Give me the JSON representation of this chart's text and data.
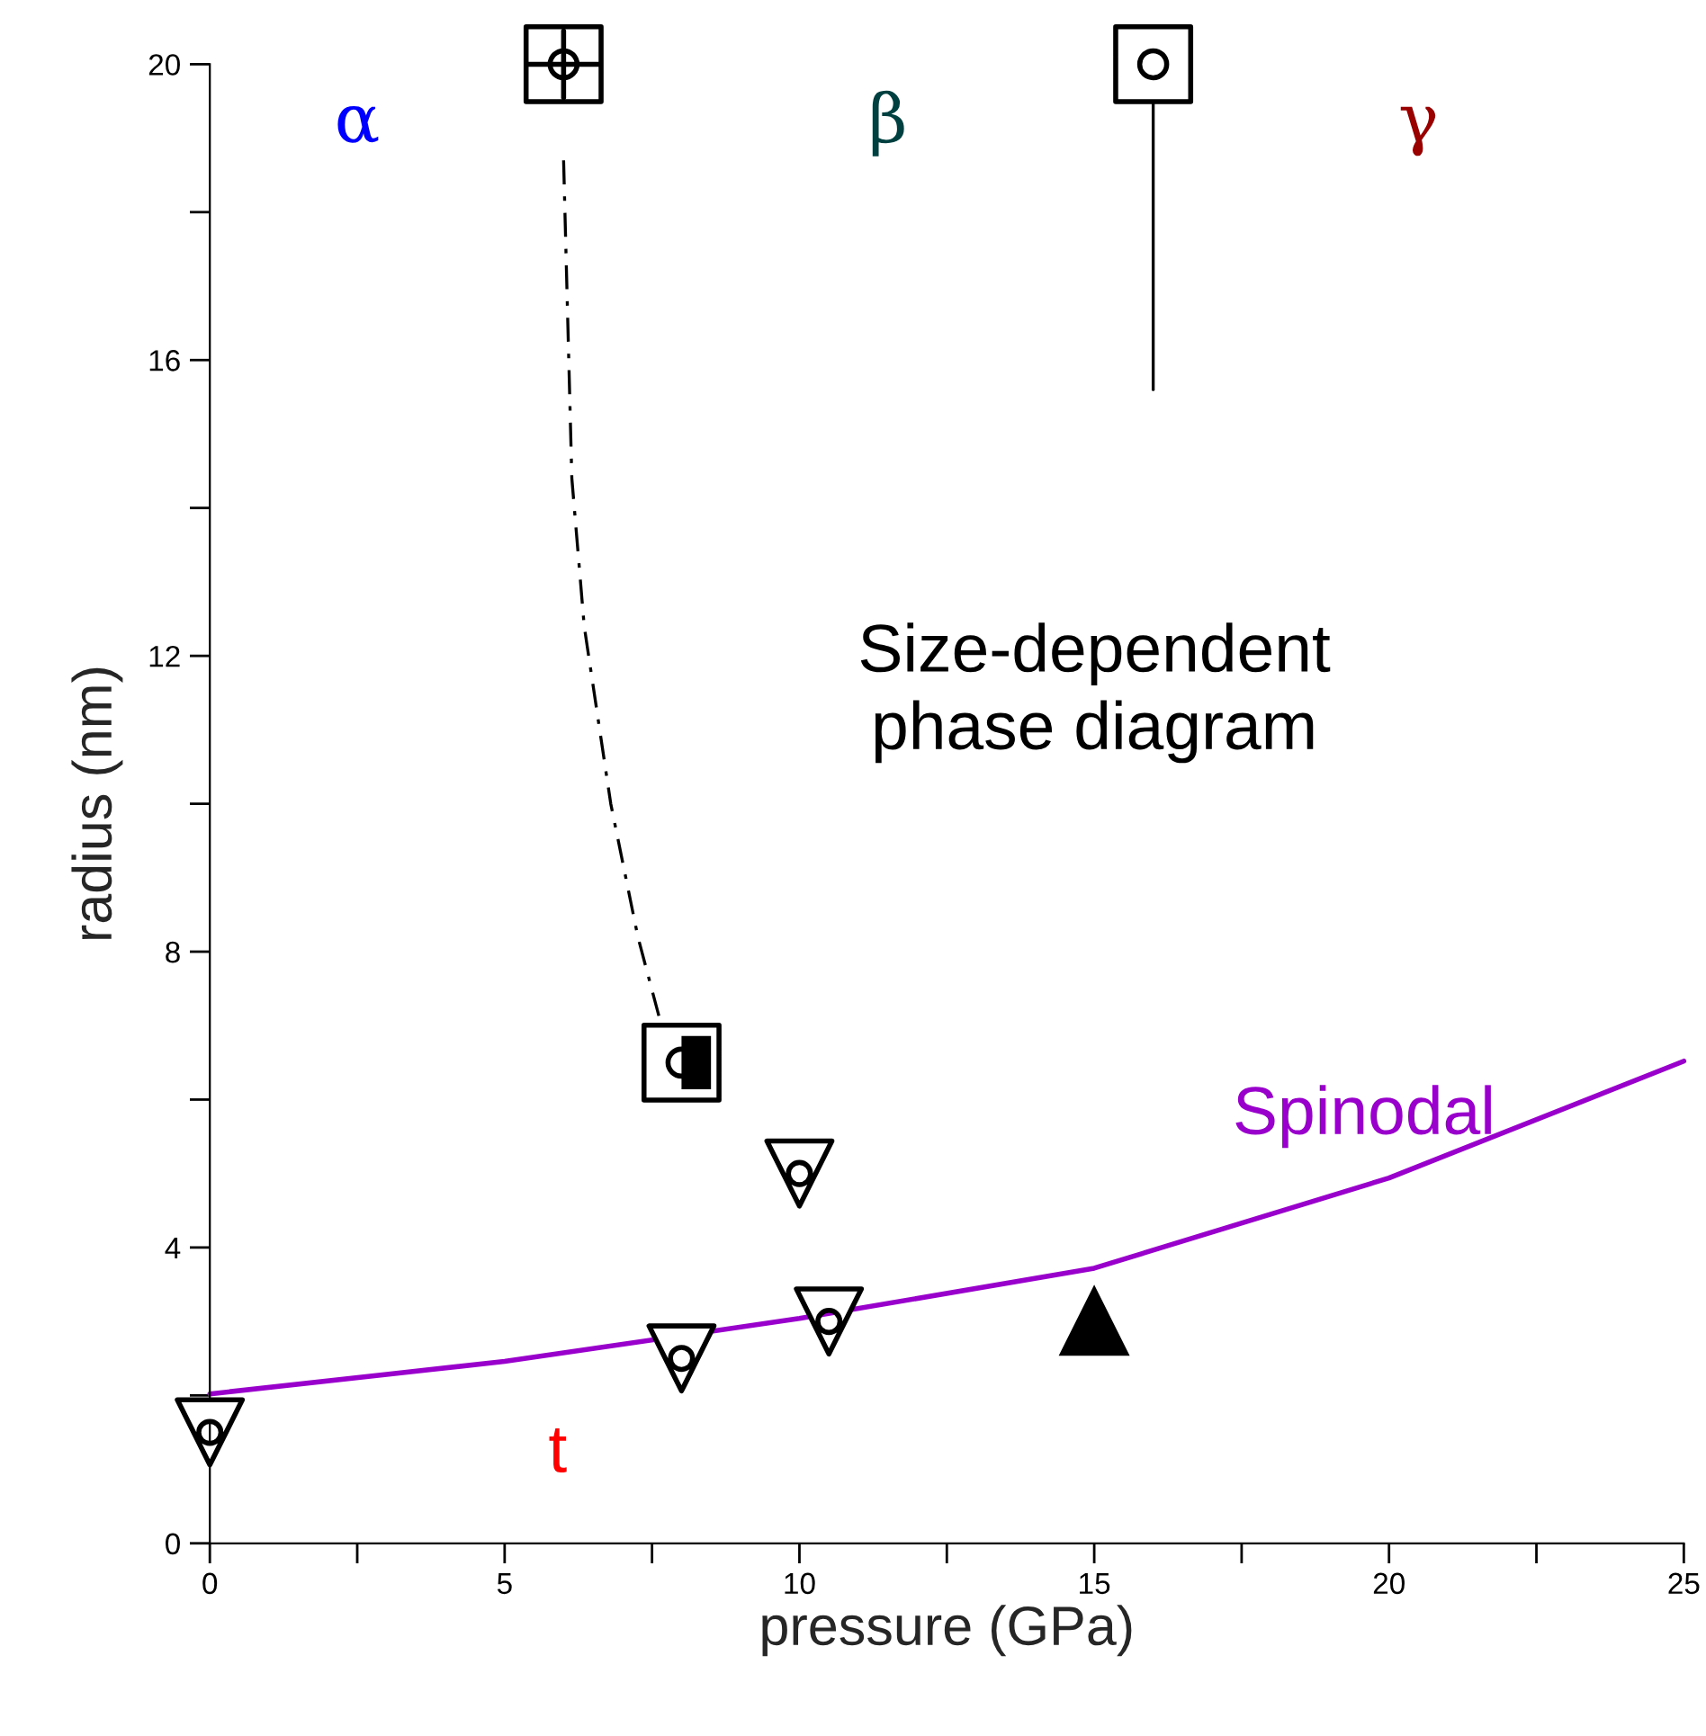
{
  "chart_data": {
    "type": "scatter",
    "xlabel": "pressure (GPa)",
    "ylabel": "radius (nm)",
    "xlim": [
      0,
      25
    ],
    "ylim": [
      0,
      20
    ],
    "xticks": [
      0,
      {
        "value": 2.5,
        "label": null
      },
      5,
      {
        "value": 7.5,
        "label": null
      },
      10,
      {
        "value": 12.5,
        "label": null
      },
      15,
      {
        "value": 17.5,
        "label": null
      },
      20,
      {
        "value": 22.5,
        "label": null
      },
      25
    ],
    "yticks": [
      0,
      {
        "value": 2,
        "label": null
      },
      4,
      {
        "value": 6,
        "label": null
      },
      8,
      {
        "value": 10,
        "label": null
      },
      12,
      {
        "value": 14,
        "label": null
      },
      16,
      {
        "value": 18,
        "label": null
      },
      20
    ],
    "grid": false,
    "legend": false,
    "series": [
      {
        "type": "line",
        "color": "#000000",
        "line_style": "dashed",
        "x": [
          6.0,
          6.14,
          6.35,
          6.8,
          7.26,
          7.66
        ],
        "values": [
          18.7,
          14.4,
          12.4,
          10.0,
          8.2,
          7.0
        ]
      },
      {
        "type": "line",
        "color": "#000000",
        "line_style": "solid",
        "x": [
          16,
          16
        ],
        "values": [
          15.6,
          19.5
        ]
      },
      {
        "type": "line",
        "name": "Spinodal",
        "color": "#9900cc",
        "line_style": "solid",
        "x": [
          0,
          5,
          10,
          15,
          20,
          25
        ],
        "values": [
          2.02,
          2.46,
          3.04,
          3.72,
          4.94,
          6.52
        ]
      },
      {
        "color": "#000000",
        "marker": "square",
        "x": [
          6,
          16,
          8
        ],
        "values": [
          20,
          20,
          6.5
        ]
      },
      {
        "color": "#000000",
        "marker": "triangle",
        "x": [
          0,
          8,
          10,
          10.5
        ],
        "values": [
          1.5,
          2.5,
          5.0,
          3.0
        ]
      },
      {
        "color": "#000000",
        "marker": "triangle",
        "x": [
          15
        ],
        "values": [
          3.0
        ]
      }
    ],
    "annotations": [
      "α",
      "β",
      "γ",
      "t",
      "Size-dependent\nphase diagram"
    ]
  }
}
